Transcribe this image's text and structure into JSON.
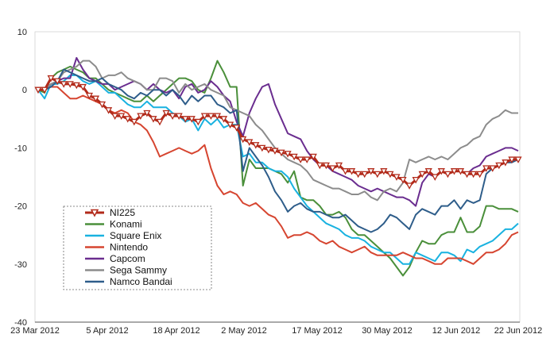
{
  "chart_data": {
    "type": "line",
    "ylim": [
      -40,
      10
    ],
    "y_ticks": [
      "10",
      "0",
      "-10",
      "-20",
      "-30",
      "-40"
    ],
    "x_tick_labels": [
      "23 Mar 2012",
      "5 Apr 2012",
      "18 Apr 2012",
      "2 May 2012",
      "17 May 2012",
      "30 May 2012",
      "12 Jun 2012",
      "22 Jun 2012"
    ],
    "grid": false,
    "legend_placement": "bottom-left",
    "series": [
      {
        "name": "NI225",
        "color": "#b22a1a",
        "marker": "triangle-down",
        "values": [
          0,
          0,
          2,
          1.5,
          1,
          1,
          0.8,
          0.5,
          -1,
          -1.5,
          -2.5,
          -3.5,
          -4.5,
          -4.5,
          -5,
          -5.5,
          -4.5,
          -4,
          -5,
          -5.5,
          -4,
          -4.5,
          -4.5,
          -5,
          -5,
          -5.5,
          -4.5,
          -4.5,
          -4.5,
          -5,
          -6,
          -6.5,
          -8.5,
          -9,
          -9.5,
          -10,
          -10.3,
          -10.5,
          -10.8,
          -11,
          -11.5,
          -12,
          -12,
          -11.5,
          -13,
          -13,
          -13.5,
          -13,
          -14,
          -14,
          -14.5,
          -14.5,
          -14,
          -14.5,
          -14,
          -14.5,
          -15,
          -15.5,
          -16.5,
          -15.5,
          -14.5,
          -14,
          -15,
          -14,
          -14.5,
          -14,
          -14,
          -14.5,
          -14.5,
          -14.5,
          -13.5,
          -13.5,
          -13,
          -12.5,
          -12,
          -12
        ]
      },
      {
        "name": "Konami",
        "color": "#4a8f3a",
        "values": [
          0,
          -0.5,
          2,
          3,
          3.5,
          4,
          3.5,
          3,
          2,
          2,
          1,
          0,
          -0.5,
          -1,
          -1.5,
          -2,
          -2,
          -1,
          -2,
          -1,
          0,
          1,
          2,
          2,
          1.5,
          0,
          -0.5,
          2,
          5,
          3,
          0.5,
          0.5,
          -16.5,
          -12,
          -13.5,
          -13.5,
          -13.5,
          -14,
          -14.5,
          -16,
          -14,
          -18.5,
          -19,
          -19,
          -20,
          -21.5,
          -21.5,
          -21,
          -22,
          -24,
          -25,
          -25,
          -26,
          -27,
          -28,
          -29,
          -30.5,
          -32,
          -30.5,
          -28,
          -26,
          -26.5,
          -26.5,
          -25,
          -24.5,
          -24.5,
          -22,
          -24.5,
          -24.5,
          -23.5,
          -20,
          -20,
          -20.5,
          -20.5,
          -20.5,
          -21
        ]
      },
      {
        "name": "Square Enix",
        "color": "#19b2e0",
        "values": [
          0,
          -1.5,
          1,
          1,
          1.5,
          2.5,
          2.5,
          1.5,
          1,
          1.5,
          0.5,
          -0.5,
          -0.5,
          -1.5,
          -2.5,
          -3,
          -3,
          -2,
          -3,
          -3,
          -3,
          -4,
          -4.5,
          -5.5,
          -5,
          -7,
          -5,
          -6,
          -5,
          -6.5,
          -6,
          -6,
          -11.5,
          -11,
          -12.5,
          -12.5,
          -13.5,
          -14,
          -14,
          -15,
          -17,
          -18.5,
          -20,
          -21,
          -22,
          -23,
          -23.5,
          -24,
          -25,
          -25.5,
          -25.5,
          -26,
          -27,
          -27.5,
          -28,
          -28,
          -29,
          -30,
          -30,
          -28,
          -28.5,
          -29,
          -29.5,
          -28,
          -28,
          -28.5,
          -29.5,
          -27.5,
          -28,
          -27,
          -26.5,
          -26,
          -25,
          -24,
          -24,
          -23
        ]
      },
      {
        "name": "Nintendo",
        "color": "#d64530",
        "values": [
          0,
          0,
          0.5,
          0.5,
          -0.5,
          -1.5,
          -1.5,
          -1,
          -1.5,
          -2,
          -2.5,
          -3.5,
          -4,
          -3.5,
          -4,
          -5.5,
          -6,
          -7,
          -9,
          -11.5,
          -11,
          -10.5,
          -10,
          -10.5,
          -11,
          -10.5,
          -9.5,
          -13.5,
          -16.5,
          -18,
          -17.5,
          -18,
          -19.5,
          -20,
          -19.5,
          -20.5,
          -21.5,
          -22,
          -23.5,
          -25.5,
          -25,
          -25,
          -24.5,
          -25,
          -26,
          -26.5,
          -26,
          -27,
          -27.5,
          -28,
          -27.5,
          -27,
          -28,
          -28.5,
          -28.5,
          -28.5,
          -28.5,
          -28,
          -28.5,
          -29,
          -29,
          -29.5,
          -30,
          -30,
          -29,
          -29,
          -29,
          -29.5,
          -30,
          -29,
          -28,
          -28,
          -27.5,
          -26.5,
          -25,
          -24.5
        ]
      },
      {
        "name": "Capcom",
        "color": "#6a2d8f",
        "values": [
          0,
          0,
          1,
          1.5,
          2,
          2,
          5.5,
          3.5,
          2,
          1.5,
          1,
          1,
          0,
          0.5,
          1,
          1.5,
          1,
          0,
          1,
          0,
          -0.5,
          0,
          -1.5,
          0.5,
          1,
          -0.5,
          0,
          1.5,
          0.5,
          -1,
          -2,
          -5.5,
          -8,
          -4,
          -1.5,
          0.5,
          1,
          -2.5,
          -5,
          -7.5,
          -8,
          -8.5,
          -10.5,
          -12,
          -13,
          -13,
          -14,
          -14.5,
          -15,
          -15.5,
          -16.5,
          -17,
          -17.5,
          -17,
          -17.5,
          -18,
          -18.5,
          -18.5,
          -19,
          -20,
          -16,
          -14.5,
          -15,
          -14,
          -14.5,
          -14,
          -14,
          -14.5,
          -13.5,
          -13,
          -11.5,
          -11,
          -10.5,
          -10,
          -10,
          -10.5
        ]
      },
      {
        "name": "Sega Sammy",
        "color": "#8c8c8c",
        "values": [
          0,
          0,
          1,
          1.5,
          3,
          3.5,
          4,
          5,
          5,
          4,
          2,
          2.5,
          2.5,
          3,
          2,
          1.5,
          1,
          0,
          0,
          2,
          2,
          1.5,
          -0.5,
          1,
          0,
          0.5,
          1,
          0,
          -0.5,
          -1,
          -3,
          -3.5,
          -4,
          -4.5,
          -6,
          -7,
          -8.5,
          -10,
          -11,
          -12,
          -12.5,
          -13,
          -14,
          -15.5,
          -16,
          -16.5,
          -17,
          -17,
          -17.5,
          -18,
          -18,
          -17.5,
          -18.5,
          -19,
          -17.5,
          -17,
          -17.5,
          -16,
          -12,
          -12.5,
          -12,
          -11.5,
          -12,
          -11.5,
          -12,
          -11,
          -10,
          -9.5,
          -8.5,
          -8,
          -6,
          -5,
          -4.5,
          -3.5,
          -4,
          -4
        ]
      },
      {
        "name": "Namco Bandai",
        "color": "#2e5d8a",
        "values": [
          0,
          0,
          0.5,
          1.5,
          3.5,
          3,
          2.5,
          2,
          1.5,
          1.5,
          2,
          1,
          0.5,
          0,
          -1,
          -1.5,
          -0.5,
          -1,
          0,
          0,
          -1,
          0,
          -1,
          -2.5,
          -1,
          -2,
          -1,
          -1,
          -2.5,
          -3,
          -4,
          -3.5,
          -14,
          -10,
          -11.5,
          -13,
          -15,
          -17.5,
          -19,
          -21,
          -20,
          -19.5,
          -20.5,
          -21,
          -21,
          -21.5,
          -22,
          -22,
          -21.5,
          -22.5,
          -23.5,
          -24,
          -24.5,
          -24,
          -23,
          -21.5,
          -22,
          -23,
          -24,
          -21.5,
          -20.5,
          -21,
          -21.5,
          -20,
          -20,
          -19,
          -20.5,
          -19,
          -19.5,
          -19,
          -14.5,
          -13.5,
          -13,
          -12.5,
          -12.5,
          -12
        ]
      }
    ]
  }
}
